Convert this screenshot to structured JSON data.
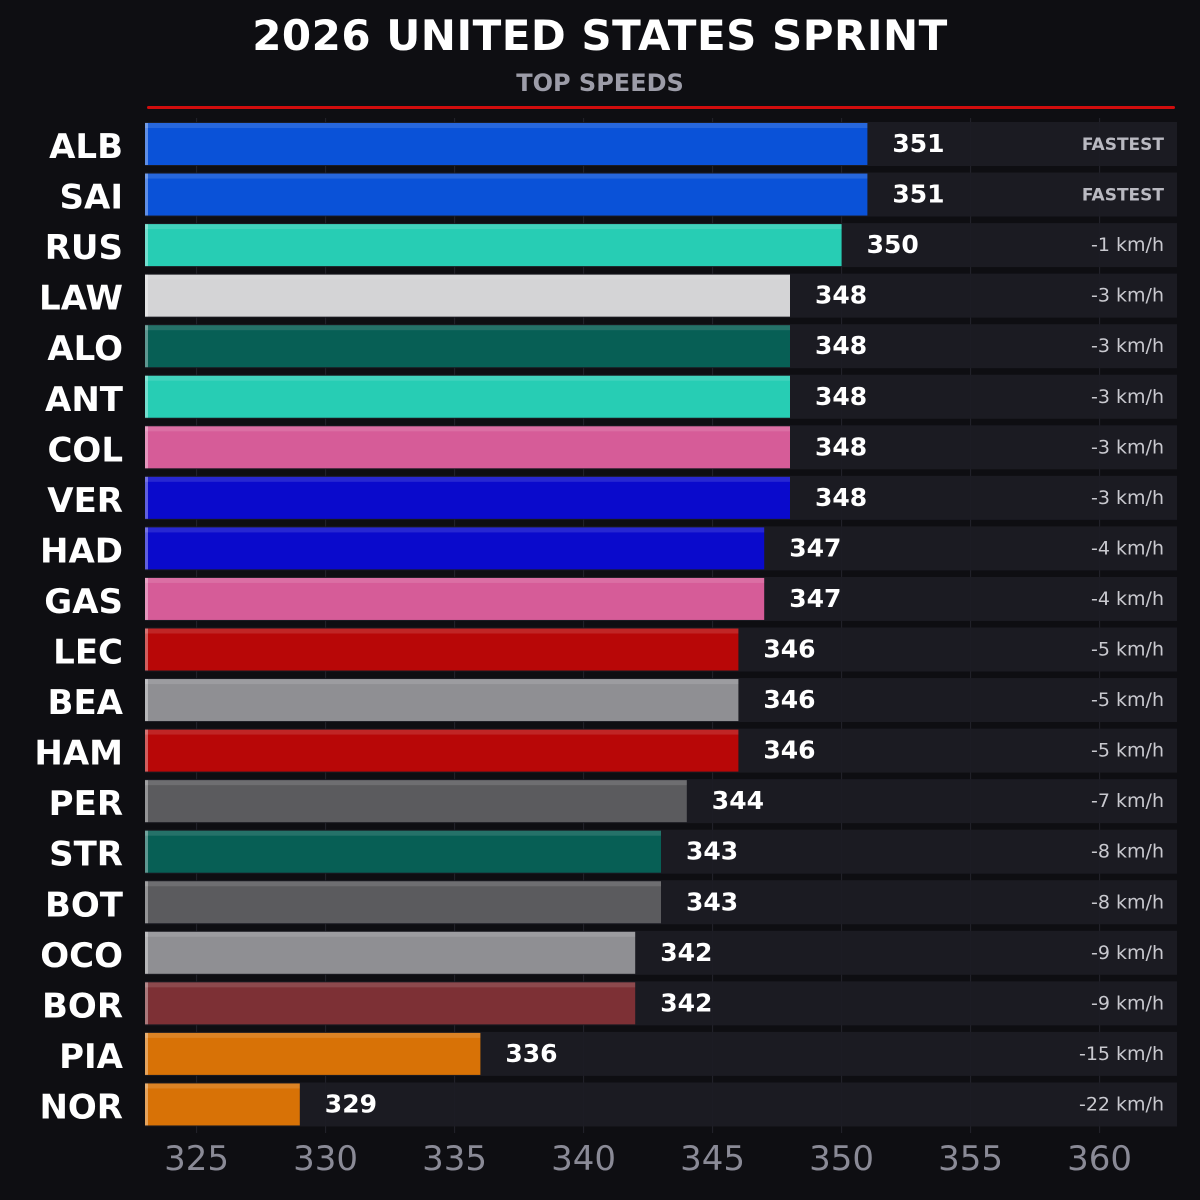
{
  "header": {
    "title": "2026 UNITED STATES SPRINT",
    "subtitle": "TOP SPEEDS",
    "accent_color": "#d00d0d"
  },
  "chart_data": {
    "type": "bar",
    "orientation": "horizontal",
    "title": "2026 UNITED STATES SPRINT",
    "subtitle": "TOP SPEEDS",
    "xlabel": "",
    "ylabel": "",
    "xlim": [
      323,
      363
    ],
    "xticks": [
      325,
      330,
      335,
      340,
      345,
      350,
      355,
      360
    ],
    "grid": true,
    "categories": [
      "ALB",
      "SAI",
      "RUS",
      "LAW",
      "ALO",
      "ANT",
      "COL",
      "VER",
      "HAD",
      "GAS",
      "LEC",
      "BEA",
      "HAM",
      "PER",
      "STR",
      "BOT",
      "OCO",
      "BOR",
      "PIA",
      "NOR"
    ],
    "values": [
      351,
      351,
      350,
      348,
      348,
      348,
      348,
      348,
      347,
      347,
      346,
      346,
      346,
      344,
      343,
      343,
      342,
      342,
      336,
      329
    ],
    "deltas": [
      "FASTEST",
      "FASTEST",
      "-1 km/h",
      "-3 km/h",
      "-3 km/h",
      "-3 km/h",
      "-3 km/h",
      "-3 km/h",
      "-4 km/h",
      "-4 km/h",
      "-5 km/h",
      "-5 km/h",
      "-5 km/h",
      "-7 km/h",
      "-8 km/h",
      "-8 km/h",
      "-9 km/h",
      "-9 km/h",
      "-15 km/h",
      "-22 km/h"
    ],
    "colors": [
      "#0a52d8",
      "#0a52d8",
      "#27cdb4",
      "#d4d4d6",
      "#075f55",
      "#27cdb4",
      "#d65c98",
      "#0a0acc",
      "#0a0acc",
      "#d65c98",
      "#b80707",
      "#8f8f93",
      "#b80707",
      "#5b5b5e",
      "#075f55",
      "#5b5b5e",
      "#8f8f93",
      "#7d3035",
      "#d87206",
      "#d87206"
    ]
  }
}
